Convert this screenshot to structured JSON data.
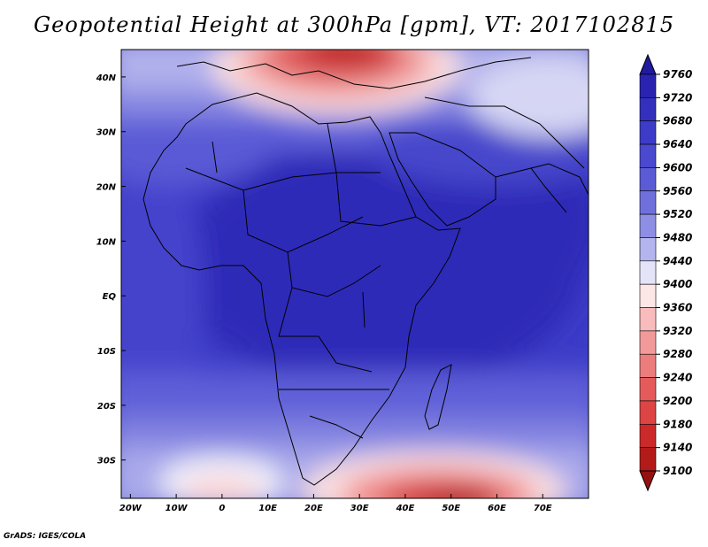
{
  "title": "Geopotential Height at 300hPa [gpm], VT: 2017102815",
  "footer": "GrADS: IGES/COLA",
  "map": {
    "lon_range": [
      -22,
      80
    ],
    "lat_range": [
      -37,
      45
    ],
    "lon_ticks": [
      {
        "value": -20,
        "label": "20W"
      },
      {
        "value": -10,
        "label": "10W"
      },
      {
        "value": 0,
        "label": "0"
      },
      {
        "value": 10,
        "label": "10E"
      },
      {
        "value": 20,
        "label": "20E"
      },
      {
        "value": 30,
        "label": "30E"
      },
      {
        "value": 40,
        "label": "40E"
      },
      {
        "value": 50,
        "label": "50E"
      },
      {
        "value": 60,
        "label": "60E"
      },
      {
        "value": 70,
        "label": "70E"
      }
    ],
    "lat_ticks": [
      {
        "value": 40,
        "label": "40N"
      },
      {
        "value": 30,
        "label": "30N"
      },
      {
        "value": 20,
        "label": "20N"
      },
      {
        "value": 10,
        "label": "10N"
      },
      {
        "value": 0,
        "label": "EQ"
      },
      {
        "value": -10,
        "label": "10S"
      },
      {
        "value": -20,
        "label": "20S"
      },
      {
        "value": -30,
        "label": "30S"
      }
    ]
  },
  "colorbar": {
    "levels": [
      "9760",
      "9720",
      "9680",
      "9640",
      "9600",
      "9560",
      "9520",
      "9480",
      "9440",
      "9400",
      "9360",
      "9320",
      "9280",
      "9240",
      "9200",
      "9180",
      "9140",
      "9100"
    ],
    "colors": [
      "#211aa0",
      "#2a23b0",
      "#3430bd",
      "#3d3cc8",
      "#4a49cf",
      "#5b5bd6",
      "#7070dd",
      "#8e8ee4",
      "#b4b4ee",
      "#e4e4f8",
      "#fde6e6",
      "#f8bcbc",
      "#f29a9a",
      "#ec7d7d",
      "#e55b5b",
      "#dd4444",
      "#cc2a2a",
      "#b31a1a",
      "#961010"
    ]
  }
}
